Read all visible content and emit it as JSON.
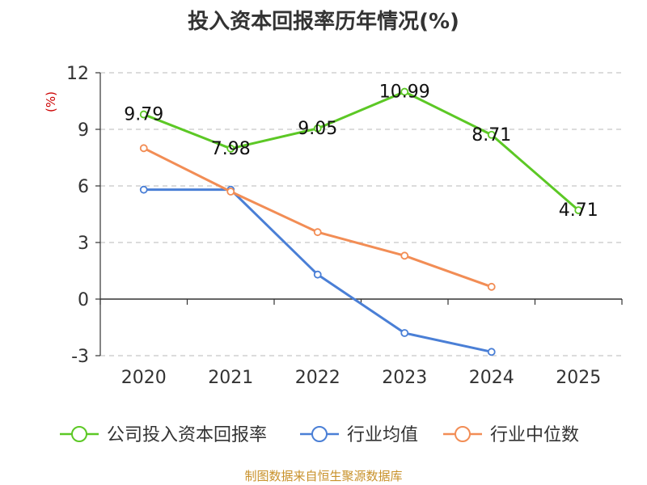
{
  "chart_data": {
    "type": "line",
    "title": "投入资本回报率历年情况(%)",
    "ylabel": "(%)",
    "xlabel": "",
    "categories": [
      "2020",
      "2021",
      "2022",
      "2023",
      "2024",
      "2025"
    ],
    "ylim": [
      -3,
      12
    ],
    "yticks": [
      -3,
      0,
      3,
      6,
      9,
      12
    ],
    "grid": true,
    "legend_position": "bottom",
    "series": [
      {
        "name": "公司投入资本回报率",
        "color": "#5cc825",
        "values": [
          9.79,
          7.98,
          9.05,
          10.99,
          8.71,
          4.71
        ],
        "data_labels": [
          "9.79",
          "7.98",
          "9.05",
          "10.99",
          "8.71",
          "4.71"
        ]
      },
      {
        "name": "行业均值",
        "color": "#4a7fd6",
        "values": [
          5.8,
          5.8,
          1.3,
          -1.8,
          -2.8,
          null
        ]
      },
      {
        "name": "行业中位数",
        "color": "#f28d55",
        "values": [
          8.0,
          5.7,
          3.55,
          2.3,
          0.65,
          null
        ]
      }
    ]
  },
  "source": "制图数据来自恒生聚源数据库"
}
